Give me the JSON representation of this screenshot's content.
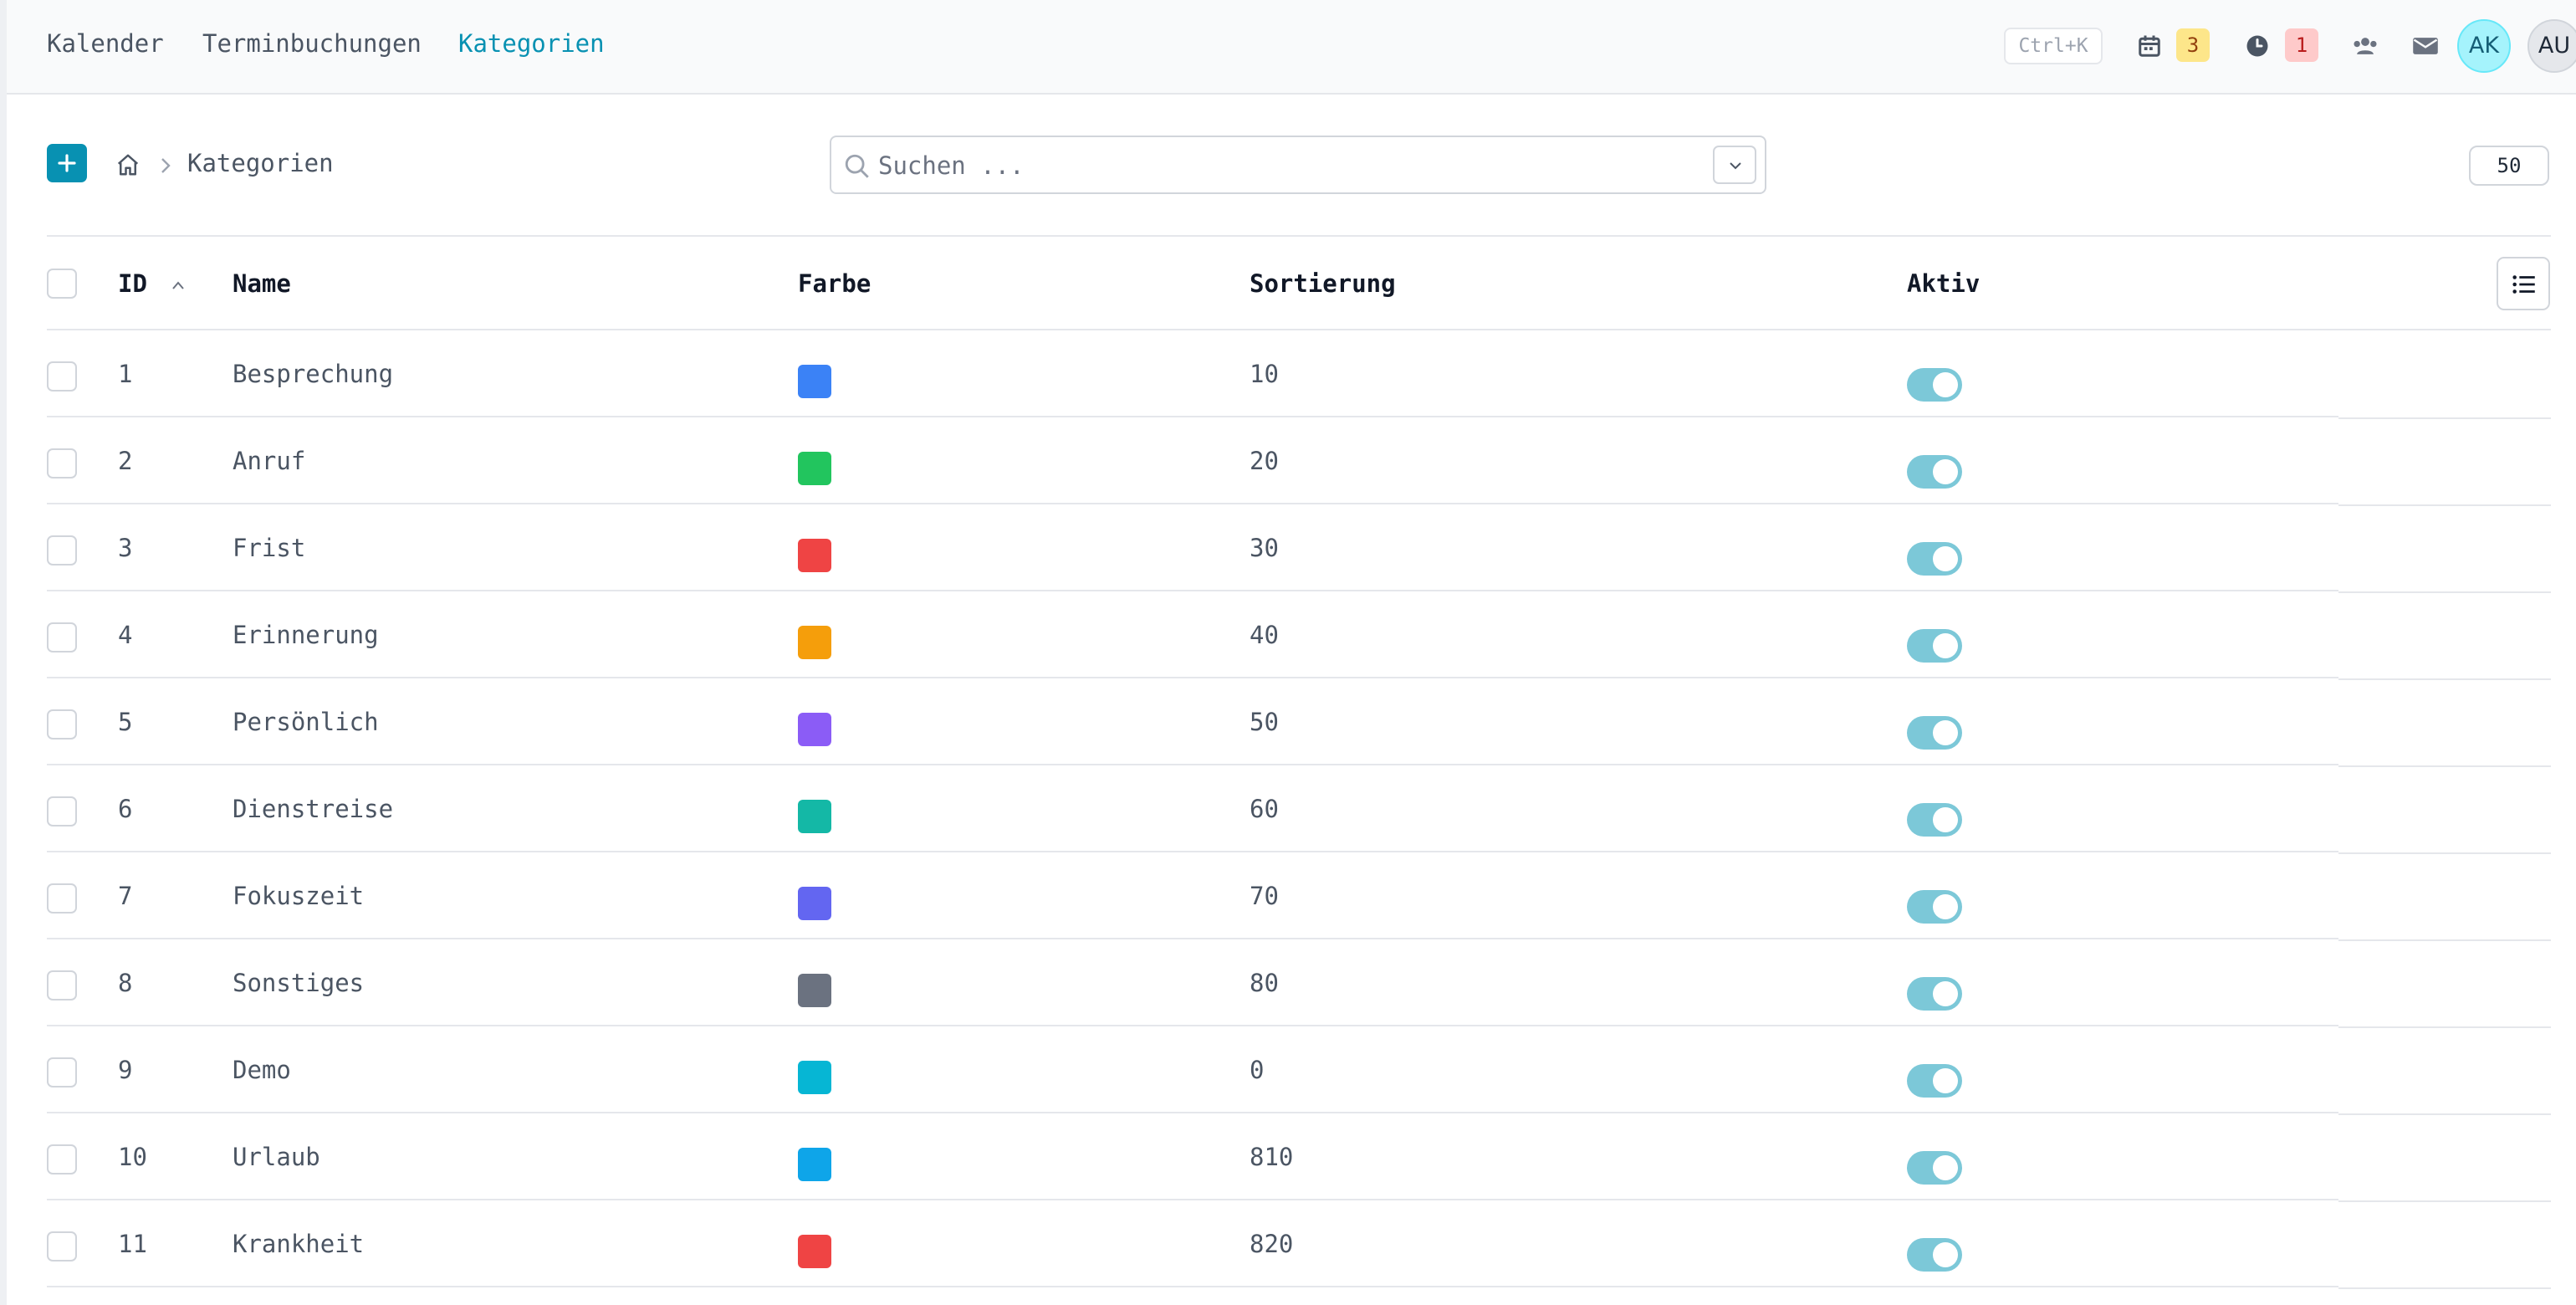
{
  "nav": {
    "links": [
      "Kalender",
      "Terminbuchungen",
      "Kategorien"
    ],
    "shortcut": "Ctrl+K",
    "calendar_badge": "3",
    "clock_badge": "1",
    "avatars": [
      "AK",
      "AU"
    ]
  },
  "toolbar": {
    "breadcrumb_label": "Kategorien",
    "search_placeholder": "Suchen ...",
    "page_size": "50"
  },
  "table": {
    "headers": {
      "id": "ID",
      "name": "Name",
      "color": "Farbe",
      "sort": "Sortierung",
      "active": "Aktiv"
    },
    "rows": [
      {
        "id": "1",
        "name": "Besprechung",
        "color": "#3b82f6",
        "sort": "10",
        "active": true
      },
      {
        "id": "2",
        "name": "Anruf",
        "color": "#22c55e",
        "sort": "20",
        "active": true
      },
      {
        "id": "3",
        "name": "Frist",
        "color": "#ef4444",
        "sort": "30",
        "active": true
      },
      {
        "id": "4",
        "name": "Erinnerung",
        "color": "#f59e0b",
        "sort": "40",
        "active": true
      },
      {
        "id": "5",
        "name": "Persönlich",
        "color": "#8b5cf6",
        "sort": "50",
        "active": true
      },
      {
        "id": "6",
        "name": "Dienstreise",
        "color": "#14b8a6",
        "sort": "60",
        "active": true
      },
      {
        "id": "7",
        "name": "Fokuszeit",
        "color": "#6366f1",
        "sort": "70",
        "active": true
      },
      {
        "id": "8",
        "name": "Sonstiges",
        "color": "#6b7280",
        "sort": "80",
        "active": true
      },
      {
        "id": "9",
        "name": "Demo",
        "color": "#06b6d4",
        "sort": "0",
        "active": true
      },
      {
        "id": "10",
        "name": "Urlaub",
        "color": "#0ea5e9",
        "sort": "810",
        "active": true
      },
      {
        "id": "11",
        "name": "Krankheit",
        "color": "#ef4444",
        "sort": "820",
        "active": true
      }
    ]
  }
}
